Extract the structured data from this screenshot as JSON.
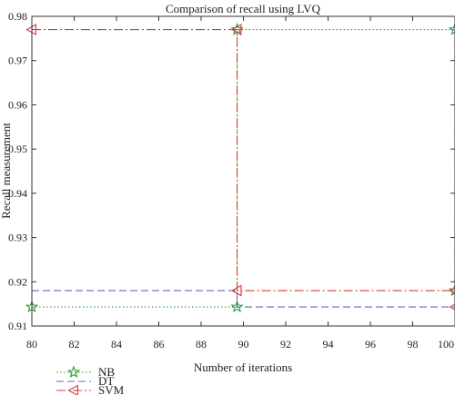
{
  "chart_data": {
    "type": "line",
    "title": "Comparison of recall using LVQ",
    "xlabel": "Number of iterations",
    "ylabel": "Recall measurement",
    "xlim": [
      80,
      100
    ],
    "ylim": [
      0.91,
      0.98
    ],
    "xticks": [
      80,
      82,
      84,
      86,
      88,
      90,
      92,
      94,
      96,
      98,
      100
    ],
    "yticks": [
      0.91,
      0.92,
      0.93,
      0.94,
      0.95,
      0.96,
      0.97,
      0.98
    ],
    "xtick_labels": [
      "80",
      "82",
      "84",
      "86",
      "88",
      "90",
      "92",
      "94",
      "96",
      "98",
      "100"
    ],
    "ytick_labels": [
      "0.91",
      "0.92",
      "0.93",
      "0.94",
      "0.95",
      "0.96",
      "0.97",
      "0.98"
    ],
    "grid": false,
    "legend_position": "below-left",
    "series": [
      {
        "name": "NB",
        "color": "#2e9a3e",
        "linestyle": "dotted",
        "marker": "star",
        "points": [
          [
            80,
            0.9143
          ],
          [
            89.7,
            0.9143
          ],
          [
            89.7,
            0.977
          ],
          [
            100,
            0.977
          ],
          [
            100,
            0.918
          ]
        ]
      },
      {
        "name": "DT",
        "color": "#5a6fb8",
        "linestyle": "dashed",
        "marker": "none",
        "points": [
          [
            80,
            0.918
          ],
          [
            89.7,
            0.918
          ],
          [
            89.7,
            0.9143
          ],
          [
            100,
            0.9143
          ],
          [
            100,
            0.977
          ]
        ]
      },
      {
        "name": "SVM",
        "color": "#d93a3a",
        "linestyle": "dashdot",
        "marker": "triangle-left",
        "points": [
          [
            80,
            0.977
          ],
          [
            89.7,
            0.977
          ],
          [
            89.7,
            0.918
          ],
          [
            100,
            0.918
          ],
          [
            100,
            0.9143
          ]
        ]
      }
    ]
  }
}
